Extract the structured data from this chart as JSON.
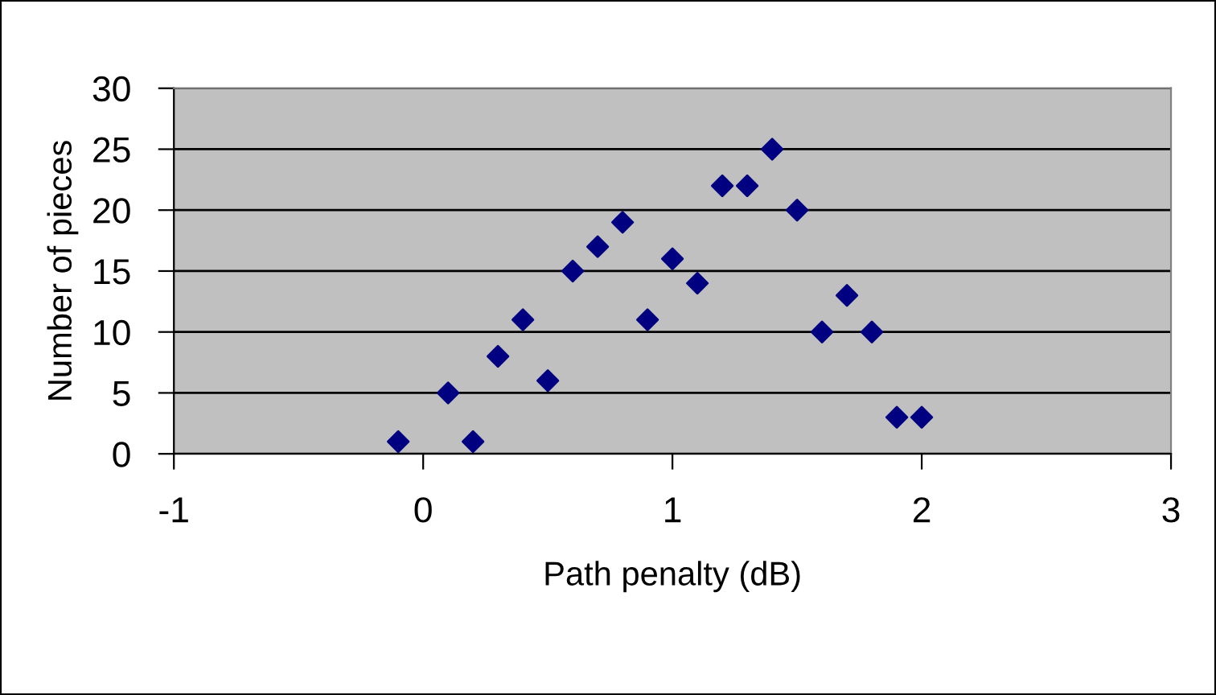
{
  "chart_data": {
    "type": "scatter",
    "xlabel": "Path penalty (dB)",
    "ylabel": "Number of pieces",
    "x": [
      -0.1,
      0.1,
      0.2,
      0.3,
      0.4,
      0.5,
      0.6,
      0.7,
      0.8,
      0.9,
      1.0,
      1.1,
      1.2,
      1.3,
      1.4,
      1.5,
      1.6,
      1.7,
      1.8,
      1.9,
      2.0
    ],
    "series": [
      {
        "color": "#000080",
        "values": [
          1,
          5,
          1,
          8,
          11,
          6,
          15,
          17,
          19,
          11,
          16,
          14,
          22,
          22,
          25,
          20,
          10,
          13,
          10,
          3,
          3
        ]
      }
    ],
    "xlim": [
      -1,
      3
    ],
    "xticks": [
      -1,
      0,
      1,
      2,
      3
    ],
    "ylim": [
      0,
      30
    ],
    "yticks": [
      0,
      5,
      10,
      15,
      20,
      25,
      30
    ],
    "grid": "y",
    "marker": "diamond",
    "legend": false
  }
}
